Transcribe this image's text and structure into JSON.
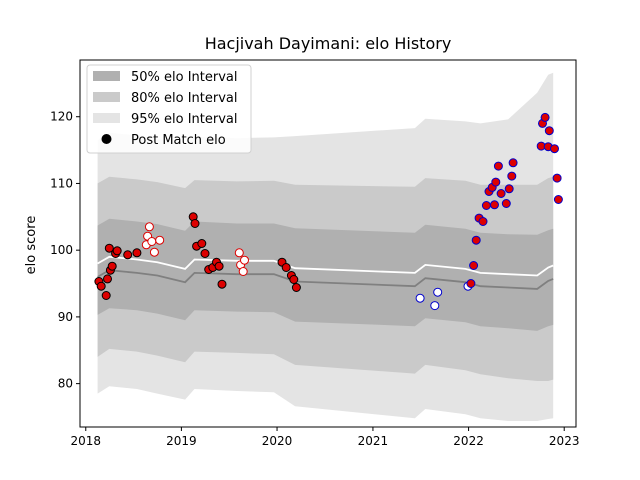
{
  "chart_data": {
    "type": "scatter",
    "title": "Hacjivah Dayimani: elo History",
    "xlabel": "",
    "ylabel": "elo score",
    "x_ticks": [
      "2018",
      "2019",
      "2020",
      "2021",
      "2022",
      "2023"
    ],
    "y_ticks": [
      "80",
      "90",
      "100",
      "110",
      "120"
    ],
    "xlim": [
      "2017-12-10",
      "2023-02-15"
    ],
    "ylim": [
      73.5,
      128.5
    ],
    "legend_position": "top-left",
    "legend": [
      {
        "label": "50% elo Interval",
        "color": "#b0b0b0",
        "kind": "band"
      },
      {
        "label": "80% elo Interval",
        "color": "#cacaca",
        "kind": "band"
      },
      {
        "label": "95% elo Interval",
        "color": "#e4e4e4",
        "kind": "band"
      },
      {
        "label": "Post Match elo",
        "color": "#000000",
        "kind": "marker"
      }
    ],
    "mean_line": [
      [
        "2018-02-15",
        97.0
      ],
      [
        "2018-04-01",
        98.0
      ],
      [
        "2018-07-15",
        97.6
      ],
      [
        "2018-10-01",
        97.2
      ],
      [
        "2019-01-15",
        96.2
      ],
      [
        "2019-02-20",
        97.6
      ],
      [
        "2019-08-01",
        97.4
      ],
      [
        "2019-12-20",
        97.4
      ],
      [
        "2020-03-10",
        96.3
      ],
      [
        "2021-06-10",
        95.6
      ],
      [
        "2021-07-20",
        96.8
      ],
      [
        "2021-12-20",
        96.2
      ],
      [
        "2022-02-15",
        95.6
      ],
      [
        "2022-06-01",
        95.4
      ],
      [
        "2022-09-20",
        95.2
      ],
      [
        "2022-11-01",
        96.4
      ],
      [
        "2022-11-20",
        96.7
      ]
    ],
    "band_50": [
      [
        "2018-02-15",
        90.3,
        103.7
      ],
      [
        "2018-04-01",
        91.3,
        104.7
      ],
      [
        "2018-07-15",
        91.0,
        104.3
      ],
      [
        "2018-10-01",
        90.5,
        103.9
      ],
      [
        "2019-01-15",
        89.5,
        102.9
      ],
      [
        "2019-02-20",
        91.0,
        104.3
      ],
      [
        "2019-08-01",
        90.8,
        104.0
      ],
      [
        "2019-12-20",
        90.7,
        104.0
      ],
      [
        "2020-03-10",
        89.3,
        103.3
      ],
      [
        "2021-06-10",
        88.6,
        102.6
      ],
      [
        "2021-07-20",
        89.8,
        103.8
      ],
      [
        "2021-12-20",
        89.2,
        103.2
      ],
      [
        "2022-02-15",
        88.6,
        102.6
      ],
      [
        "2022-06-01",
        88.3,
        102.4
      ],
      [
        "2022-09-20",
        87.9,
        102.3
      ],
      [
        "2022-11-01",
        88.6,
        103.0
      ],
      [
        "2022-11-20",
        88.8,
        103.2
      ]
    ],
    "band_80": [
      [
        "2018-02-15",
        84.0,
        110.0
      ],
      [
        "2018-04-01",
        85.2,
        111.0
      ],
      [
        "2018-07-15",
        84.8,
        110.6
      ],
      [
        "2018-10-01",
        84.2,
        110.2
      ],
      [
        "2019-01-15",
        83.2,
        109.3
      ],
      [
        "2019-02-20",
        84.8,
        110.5
      ],
      [
        "2019-08-01",
        84.6,
        110.3
      ],
      [
        "2019-12-20",
        84.4,
        110.4
      ],
      [
        "2020-03-10",
        82.8,
        109.8
      ],
      [
        "2021-06-10",
        81.5,
        109.5
      ],
      [
        "2021-07-20",
        82.8,
        110.8
      ],
      [
        "2021-12-20",
        82.0,
        110.4
      ],
      [
        "2022-02-15",
        81.4,
        109.8
      ],
      [
        "2022-06-01",
        80.8,
        109.8
      ],
      [
        "2022-09-20",
        80.4,
        109.8
      ],
      [
        "2022-11-01",
        80.4,
        110.8
      ],
      [
        "2022-11-20",
        80.6,
        111.0
      ]
    ],
    "band_95": [
      [
        "2018-02-15",
        78.5,
        116.5
      ],
      [
        "2018-04-01",
        79.6,
        117.6
      ],
      [
        "2018-07-15",
        79.2,
        117.2
      ],
      [
        "2018-10-01",
        78.5,
        116.7
      ],
      [
        "2019-01-15",
        77.6,
        115.8
      ],
      [
        "2019-02-20",
        79.2,
        117.0
      ],
      [
        "2019-08-01",
        78.9,
        116.8
      ],
      [
        "2019-12-20",
        78.7,
        116.9
      ],
      [
        "2020-03-10",
        76.6,
        117.1
      ],
      [
        "2021-06-10",
        74.8,
        118.3
      ],
      [
        "2021-07-20",
        76.2,
        119.7
      ],
      [
        "2021-12-20",
        75.4,
        119.3
      ],
      [
        "2022-02-15",
        74.8,
        119.0
      ],
      [
        "2022-06-01",
        74.4,
        119.6
      ],
      [
        "2022-09-20",
        74.4,
        123.6
      ],
      [
        "2022-11-01",
        74.7,
        126.3
      ],
      [
        "2022-11-20",
        74.8,
        126.6
      ]
    ],
    "series": [
      {
        "name": "Post Match elo",
        "fill": "#dd0000",
        "edge": "#000000",
        "points": [
          [
            "2018-02-20",
            95.3
          ],
          [
            "2018-03-01",
            94.6
          ],
          [
            "2018-03-20",
            93.2
          ],
          [
            "2018-03-25",
            95.7
          ],
          [
            "2018-04-01",
            100.3
          ],
          [
            "2018-04-05",
            97.0
          ],
          [
            "2018-04-12",
            97.6
          ],
          [
            "2018-04-25",
            99.5
          ],
          [
            "2018-05-01",
            99.9
          ],
          [
            "2018-06-10",
            99.3
          ],
          [
            "2018-07-15",
            99.6
          ],
          [
            "2019-02-15",
            105.0
          ],
          [
            "2019-02-22",
            104.0
          ],
          [
            "2019-02-28",
            100.6
          ],
          [
            "2019-03-20",
            101.0
          ],
          [
            "2019-04-01",
            99.5
          ],
          [
            "2019-04-15",
            97.1
          ],
          [
            "2019-05-01",
            97.4
          ],
          [
            "2019-05-15",
            98.2
          ],
          [
            "2019-05-25",
            97.6
          ],
          [
            "2019-06-05",
            94.9
          ],
          [
            "2020-01-20",
            98.2
          ],
          [
            "2020-02-05",
            97.4
          ],
          [
            "2020-02-25",
            96.2
          ],
          [
            "2020-03-05",
            95.6
          ],
          [
            "2020-03-15",
            94.4
          ]
        ]
      },
      {
        "name": "",
        "fill": "#ffffff",
        "edge": "#dd0000",
        "points": [
          [
            "2018-08-20",
            100.8
          ],
          [
            "2018-08-25",
            102.1
          ],
          [
            "2018-09-01",
            103.5
          ],
          [
            "2018-09-10",
            101.3
          ],
          [
            "2018-09-20",
            99.7
          ],
          [
            "2018-10-10",
            101.5
          ],
          [
            "2019-08-10",
            99.6
          ],
          [
            "2019-08-15",
            97.8
          ],
          [
            "2019-08-25",
            96.8
          ],
          [
            "2019-08-30",
            98.5
          ]
        ]
      },
      {
        "name": "",
        "fill": "#ffffff",
        "edge": "#0000cc",
        "points": [
          [
            "2021-06-30",
            92.8
          ],
          [
            "2021-08-25",
            91.7
          ],
          [
            "2021-09-05",
            93.7
          ],
          [
            "2021-12-30",
            94.6
          ]
        ]
      },
      {
        "name": "",
        "fill": "#dd0000",
        "edge": "#0000cc",
        "points": [
          [
            "2022-01-10",
            95.0
          ],
          [
            "2022-01-20",
            97.7
          ],
          [
            "2022-01-30",
            101.5
          ],
          [
            "2022-02-10",
            104.8
          ],
          [
            "2022-02-25",
            104.3
          ],
          [
            "2022-03-10",
            106.7
          ],
          [
            "2022-03-20",
            108.8
          ],
          [
            "2022-04-01",
            109.4
          ],
          [
            "2022-04-10",
            106.8
          ],
          [
            "2022-04-15",
            110.2
          ],
          [
            "2022-04-25",
            112.6
          ],
          [
            "2022-05-05",
            108.5
          ],
          [
            "2022-05-25",
            107.0
          ],
          [
            "2022-06-05",
            109.2
          ],
          [
            "2022-06-15",
            111.1
          ],
          [
            "2022-06-20",
            113.1
          ],
          [
            "2022-10-05",
            115.6
          ],
          [
            "2022-10-10",
            119.0
          ],
          [
            "2022-10-20",
            119.9
          ],
          [
            "2022-11-01",
            115.5
          ],
          [
            "2022-11-05",
            117.9
          ],
          [
            "2022-11-25",
            115.2
          ],
          [
            "2022-12-05",
            110.8
          ],
          [
            "2022-12-10",
            107.6
          ]
        ]
      }
    ]
  }
}
